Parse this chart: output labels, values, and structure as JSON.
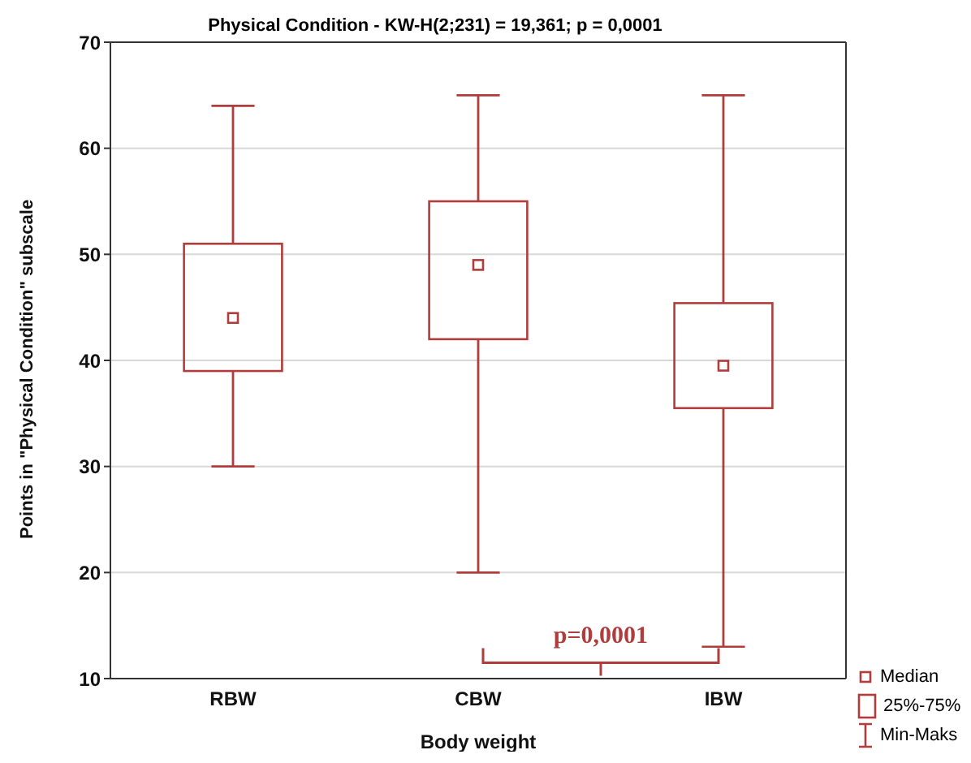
{
  "chart_data": {
    "type": "box",
    "title": "Physical Condition - KW-H(2;231) = 19,361; p = 0,0001",
    "xlabel": "Body weight",
    "ylabel": "Points in \"Physical Condition\" subscale",
    "categories": [
      "RBW",
      "CBW",
      "IBW"
    ],
    "series": [
      {
        "color": "#b03c3c",
        "boxes": [
          {
            "low": 30,
            "q1": 39,
            "median": 44,
            "q3": 51,
            "high": 64
          },
          {
            "low": 20,
            "q1": 42,
            "median": 49,
            "q3": 55,
            "high": 65
          },
          {
            "low": 13,
            "q1": 35.5,
            "median": 39.5,
            "q3": 45.4,
            "high": 65
          }
        ]
      }
    ],
    "ylim": [
      10,
      70
    ],
    "yticks": [
      10,
      20,
      30,
      40,
      50,
      60,
      70
    ],
    "grid": "y",
    "marker": "square",
    "annotations": [
      "p=0,0001",
      "Median",
      "25%-75%",
      "Min-Maks"
    ]
  }
}
